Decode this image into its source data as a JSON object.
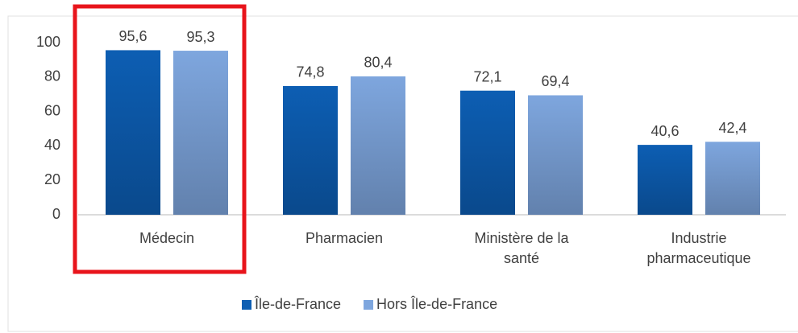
{
  "chart_data": {
    "type": "bar",
    "categories": [
      "Médecin",
      "Pharmacien",
      "Ministère de la santé",
      "Industrie pharmaceutique"
    ],
    "series": [
      {
        "name": "Île-de-France",
        "color": "#0d5eb3",
        "values": [
          95.6,
          74.8,
          72.1,
          40.6
        ],
        "value_labels": [
          "95,6",
          "74,8",
          "72,1",
          "40,6"
        ]
      },
      {
        "name": "Hors Île-de-France",
        "color": "#7ea6de",
        "values": [
          95.3,
          80.4,
          69.4,
          42.4
        ],
        "value_labels": [
          "95,3",
          "80,4",
          "69,4",
          "42,4"
        ]
      }
    ],
    "ylim": [
      0,
      100
    ],
    "yticks": [
      0,
      20,
      40,
      60,
      80,
      100
    ],
    "grid": false,
    "legend": "bottom"
  }
}
